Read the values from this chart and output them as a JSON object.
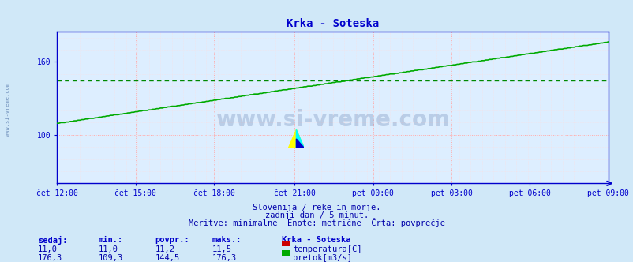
{
  "title": "Krka - Soteska",
  "bg_color": "#d0e8f8",
  "plot_bg_color": "#ddeeff",
  "x_tick_labels": [
    "čet 12:00",
    "čet 15:00",
    "čet 18:00",
    "čet 21:00",
    "pet 00:00",
    "pet 03:00",
    "pet 06:00",
    "pet 09:00"
  ],
  "x_tick_positions_frac": [
    0.0,
    0.143,
    0.286,
    0.429,
    0.572,
    0.715,
    0.858,
    1.0
  ],
  "total_points": 289,
  "y_min": 60,
  "y_max": 185,
  "y_ticks": [
    100,
    160
  ],
  "flow_min": 109.3,
  "flow_max": 176.3,
  "flow_avg": 144.5,
  "temp_min": 11.0,
  "temp_max": 11.5,
  "temp_avg": 11.2,
  "flow_color": "#00aa00",
  "temp_color": "#cc0000",
  "avg_line_color": "#008800",
  "grid_color_major": "#ffaaaa",
  "grid_color_minor": "#ffdddd",
  "axis_color": "#0000cc",
  "title_color": "#0000cc",
  "text_color": "#0000aa",
  "subtitle_line1": "Slovenija / reke in morje.",
  "subtitle_line2": "zadnji dan / 5 minut.",
  "subtitle_line3": "Meritve: minimalne  Enote: metrične  Črta: povprečje",
  "label_sedaj": "sedaj:",
  "label_min": "min.:",
  "label_povpr": "povpr.:",
  "label_maks": "maks.:",
  "legend_title": "Krka - Soteska",
  "legend_temp_label": "temperatura[C]",
  "legend_flow_label": "pretok[m3/s]",
  "temp_sedaj": "11,0",
  "temp_min_val": "11,0",
  "temp_avg_val": "11,2",
  "temp_max_val": "11,5",
  "flow_sedaj": "176,3",
  "flow_min_val": "109,3",
  "flow_avg_val": "144,5",
  "flow_max_val": "176,3",
  "watermark": "www.si-vreme.com",
  "left_label": "www.si-vreme.com"
}
